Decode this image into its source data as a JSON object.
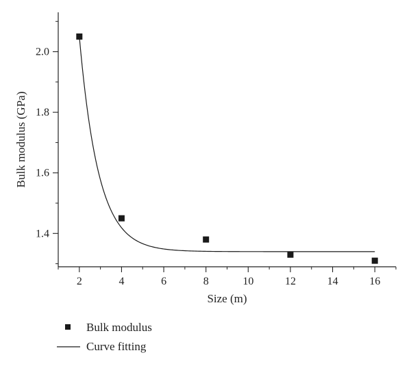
{
  "chart_data": {
    "type": "scatter",
    "title": "",
    "xlabel": "Size (m)",
    "ylabel": "Bulk modulus (GPa)",
    "xlim": [
      1,
      17
    ],
    "ylim": [
      1.29,
      2.13
    ],
    "xticks": [
      2,
      4,
      6,
      8,
      10,
      12,
      14,
      16
    ],
    "yticks": [
      1.4,
      1.6,
      1.8,
      2.0
    ],
    "xtick_labels": [
      "2",
      "4",
      "6",
      "8",
      "10",
      "12",
      "14",
      "16"
    ],
    "ytick_labels": [
      "1.4",
      "1.6",
      "1.8",
      "2.0"
    ],
    "grid": false,
    "legend_position": "bottom-left (outside plot)",
    "series": [
      {
        "name": "Bulk modulus",
        "kind": "scatter",
        "marker": "square",
        "color": "#1a1a1a",
        "x": [
          2,
          4,
          8,
          12,
          16
        ],
        "y": [
          2.05,
          1.45,
          1.38,
          1.33,
          1.31
        ]
      },
      {
        "name": "Curve fitting",
        "kind": "line",
        "color": "#1a1a1a",
        "model": "exponential decay y = y0 + A*exp(-(x - 2)/t)",
        "params": {
          "y0": 1.34,
          "A": 0.71,
          "t": 0.91
        },
        "x_range": [
          2,
          16
        ]
      }
    ]
  }
}
